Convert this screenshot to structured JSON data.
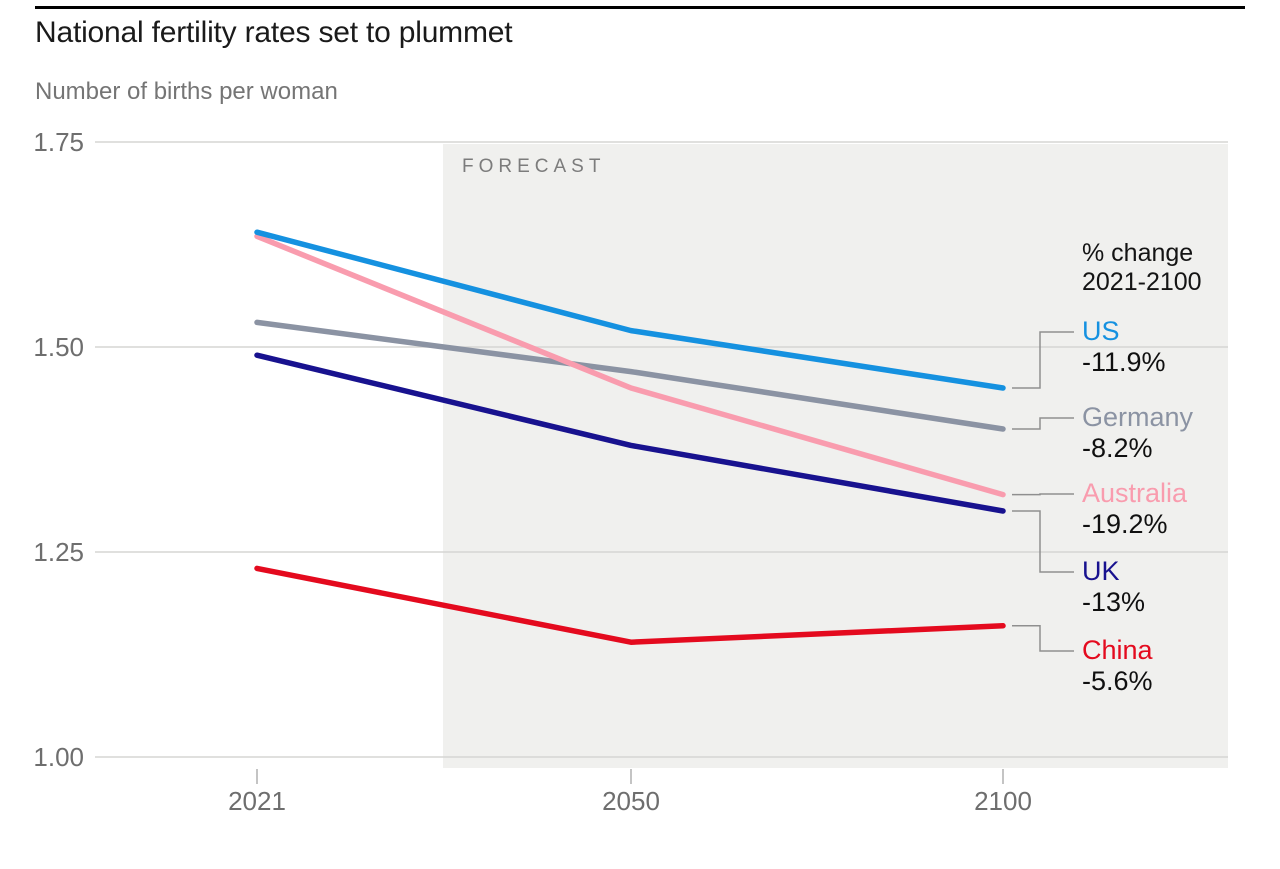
{
  "header": {
    "title": "National fertility rates set to plummet",
    "subtitle": "Number of births per woman"
  },
  "chart_data": {
    "type": "line",
    "title": "National fertility rates set to plummet",
    "ylabel": "Number of births per woman",
    "x": [
      2021,
      2050,
      2100
    ],
    "x_tick_labels": [
      "2021",
      "2050",
      "2100"
    ],
    "y_ticks": [
      1.0,
      1.25,
      1.5,
      1.75
    ],
    "y_tick_labels": [
      "1.00",
      "1.25",
      "1.50",
      "1.75"
    ],
    "ylim": [
      0.97,
      1.75
    ],
    "grid": "horizontal",
    "forecast": {
      "label": "FORECAST",
      "starts_after_year": 2035
    },
    "pct_change_header": [
      "% change",
      "2021-2100"
    ],
    "series": [
      {
        "name": "US",
        "color": "#1591e0",
        "values": [
          1.64,
          1.52,
          1.45
        ],
        "pct_change": "-11.9%"
      },
      {
        "name": "Germany",
        "color": "#8b93a3",
        "values": [
          1.53,
          1.47,
          1.4
        ],
        "pct_change": "-8.2%"
      },
      {
        "name": "Australia",
        "color": "#f99cae",
        "values": [
          1.635,
          1.45,
          1.32
        ],
        "pct_change": "-19.2%"
      },
      {
        "name": "UK",
        "color": "#18128f",
        "values": [
          1.49,
          1.38,
          1.3
        ],
        "pct_change": "-13%"
      },
      {
        "name": "China",
        "color": "#e40a1e",
        "values": [
          1.23,
          1.14,
          1.16
        ],
        "pct_change": "-5.6%"
      }
    ],
    "layout": {
      "legend_position": "right-annotations",
      "label_centers": {
        "US": 332,
        "Germany": 418,
        "Australia": 494,
        "UK": 572,
        "China": 651
      },
      "draw_order": [
        "Germany",
        "Australia",
        "UK",
        "China",
        "US"
      ]
    },
    "colors": {
      "forecast_band": "#f0f0ee",
      "gridline": "#d5d5d3",
      "axis_text": "#6e6e6e",
      "forecast_text": "#7c7c7c",
      "connector": "#8f8f8f"
    }
  }
}
